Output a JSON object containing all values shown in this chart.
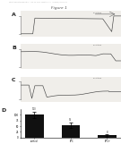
{
  "fig_title": "Figure 1",
  "header_text": "Patent Application Publication    Feb. 25, 2010  Sheet 1 of 13    US 2010/0048490 A1",
  "panel_labels": [
    "A",
    "B",
    "C",
    "D"
  ],
  "bar_values": [
    100,
    55,
    8
  ],
  "bar_errors": [
    15,
    12,
    5
  ],
  "bar_colors": [
    "#111111",
    "#111111",
    "#111111"
  ],
  "bar_categories": [
    "control",
    "TPC",
    "TPC+"
  ],
  "bar_yticks": [
    0,
    25,
    50,
    75,
    100
  ],
  "bar_ylim": [
    0,
    125
  ],
  "trace_bg": "#f0eeea",
  "trace_color": "#444444",
  "white": "#ffffff"
}
